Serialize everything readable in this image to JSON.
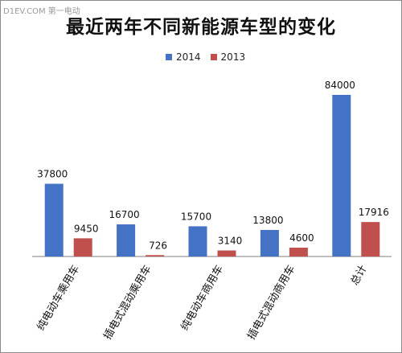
{
  "watermark": "D1EV.COM 第一电动",
  "chart_data": {
    "type": "bar",
    "title": "最近两年不同新能源车型的变化",
    "categories": [
      "纯电动车乘用车",
      "插电式混动乘用车",
      "纯电动车商用车",
      "插电式混动商用车",
      "总计"
    ],
    "series": [
      {
        "name": "2014",
        "color": "#4472c4",
        "values": [
          37800,
          16700,
          15700,
          13800,
          84000
        ]
      },
      {
        "name": "2013",
        "color": "#c0504d",
        "values": [
          9450,
          726,
          3140,
          4600,
          17916
        ]
      }
    ],
    "ylim": [
      0,
      84000
    ],
    "legend_position": "top",
    "grid": false,
    "xlabel": "",
    "ylabel": ""
  }
}
